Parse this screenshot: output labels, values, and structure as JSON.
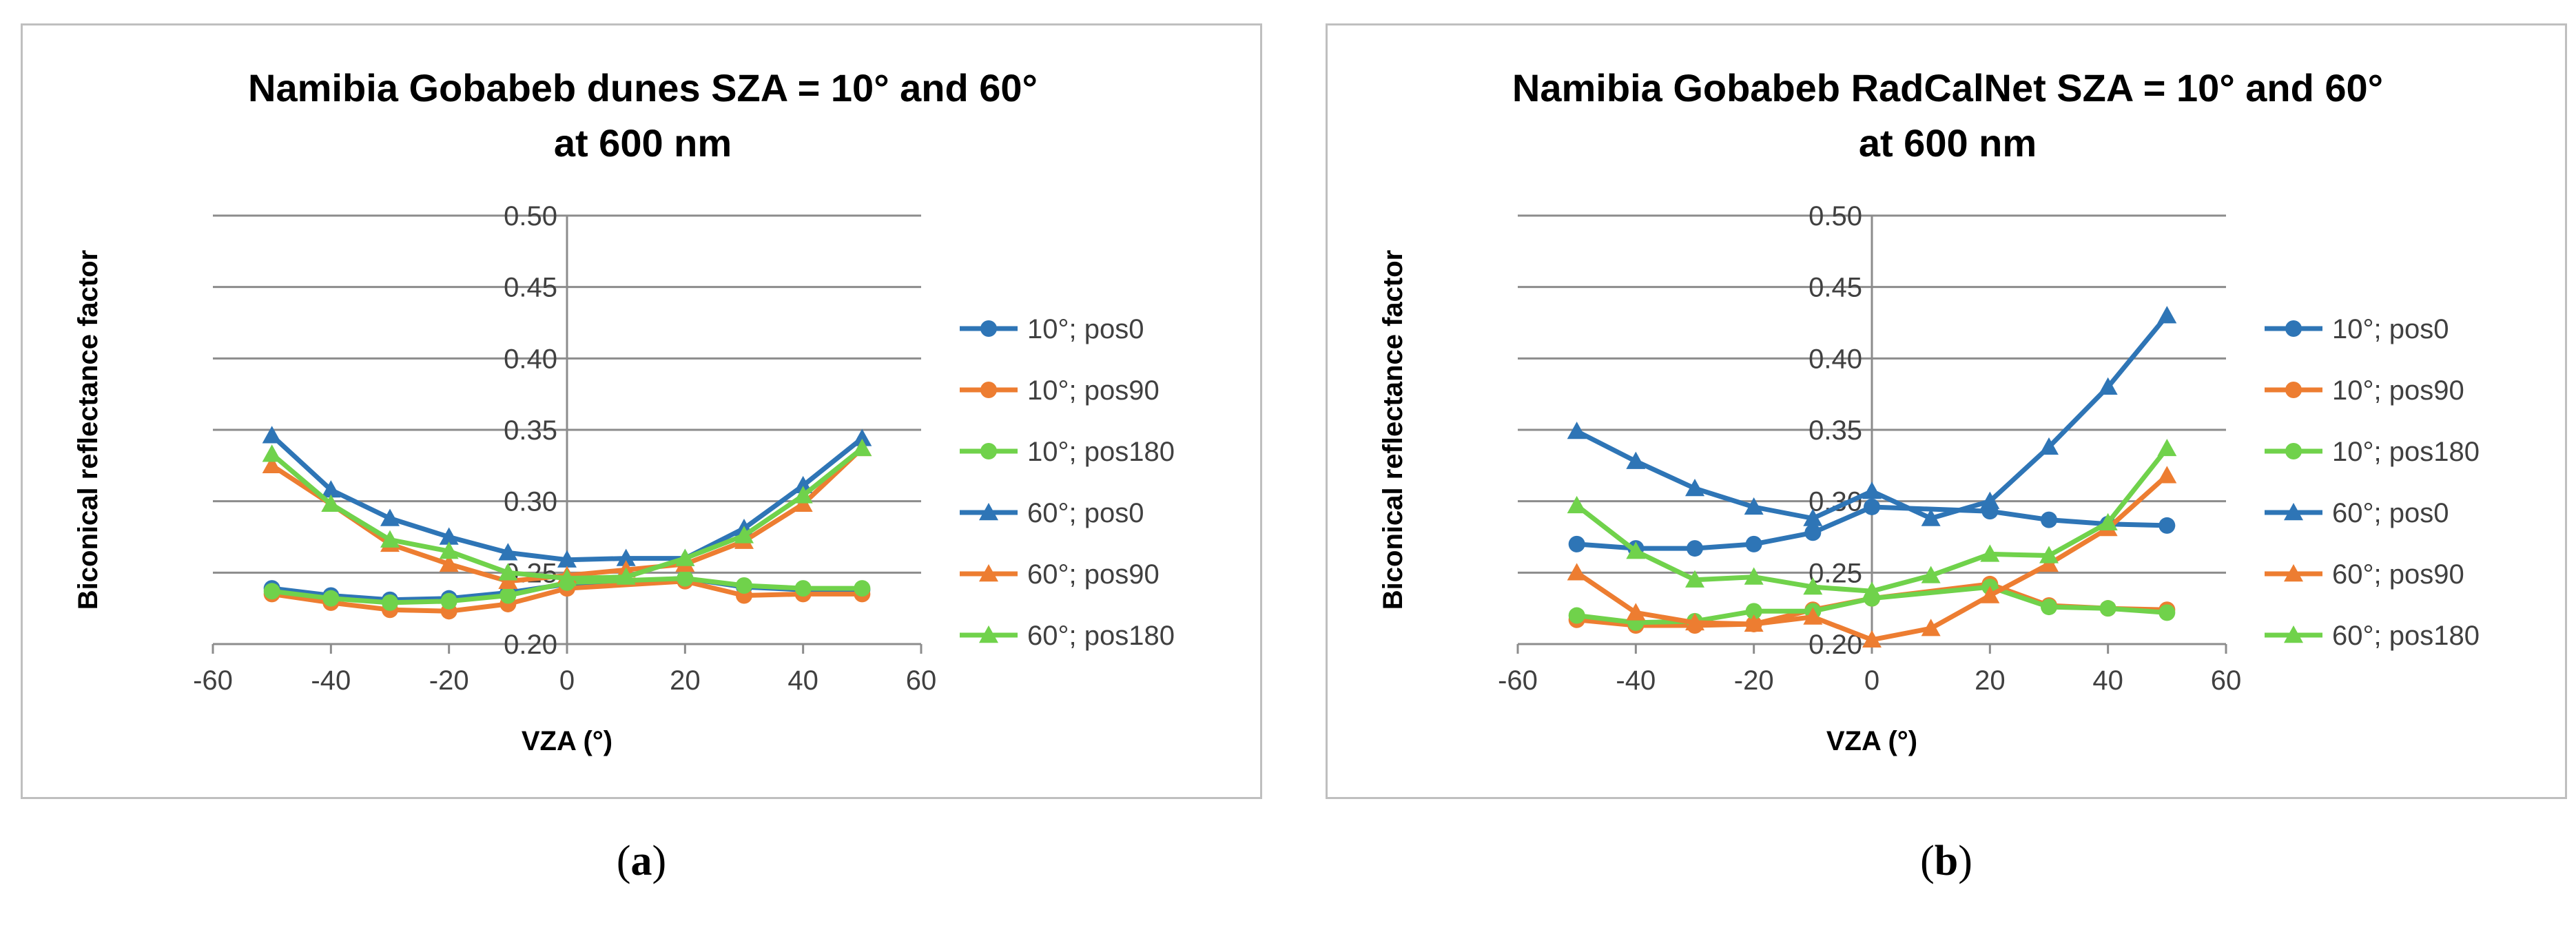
{
  "captions": [
    "a",
    "b"
  ],
  "legend_entries": [
    "10°; pos0",
    "10°; pos90",
    "10°; pos180",
    "60°; pos0",
    "60°; pos90",
    "60°; pos180"
  ],
  "colors": {
    "blue": "#2E75B6",
    "orange": "#ED7D31",
    "green": "#70D24B"
  },
  "chart_data": [
    {
      "type": "line",
      "title": [
        "Namibia Gobabeb dunes SZA = 10° and 60°",
        "at 600 nm"
      ],
      "xlabel": "VZA (°)",
      "ylabel": "Biconical reflectance factor",
      "xlim": [
        -60,
        60
      ],
      "ylim": [
        0.2,
        0.5
      ],
      "xticks": [
        -60,
        -40,
        -20,
        0,
        20,
        40,
        60
      ],
      "yticks": [
        "0.20",
        "0.25",
        "0.30",
        "0.35",
        "0.40",
        "0.45",
        "0.50"
      ],
      "grid": "horizontal",
      "legend": "right",
      "x": [
        -50,
        -40,
        -30,
        -20,
        -10,
        0,
        10,
        20,
        30,
        40,
        50
      ],
      "series": [
        {
          "name": "10°; pos0",
          "color": "blue",
          "marker": "circle",
          "values": [
            0.239,
            0.234,
            0.231,
            0.232,
            0.236,
            0.242,
            null,
            0.246,
            0.24,
            0.238,
            0.238
          ]
        },
        {
          "name": "10°; pos90",
          "color": "orange",
          "marker": "circle",
          "values": [
            0.235,
            0.229,
            0.224,
            0.223,
            0.228,
            0.239,
            null,
            0.244,
            0.234,
            0.235,
            0.235
          ]
        },
        {
          "name": "10°; pos180",
          "color": "green",
          "marker": "circle",
          "values": [
            0.237,
            0.232,
            0.229,
            0.23,
            0.234,
            0.243,
            null,
            0.246,
            0.241,
            0.239,
            0.239
          ]
        },
        {
          "name": "60°; pos0",
          "color": "blue",
          "marker": "triangle",
          "values": [
            0.346,
            0.308,
            0.288,
            0.275,
            0.264,
            0.259,
            0.26,
            0.26,
            0.281,
            0.311,
            0.344
          ]
        },
        {
          "name": "60°; pos90",
          "color": "orange",
          "marker": "triangle",
          "values": [
            0.325,
            0.298,
            0.27,
            0.256,
            0.244,
            0.248,
            0.252,
            0.256,
            0.272,
            0.298,
            0.337
          ]
        },
        {
          "name": "60°; pos180",
          "color": "green",
          "marker": "triangle",
          "values": [
            0.333,
            0.298,
            0.273,
            0.265,
            0.25,
            0.246,
            0.247,
            0.26,
            0.276,
            0.304,
            0.337
          ]
        }
      ]
    },
    {
      "type": "line",
      "title": [
        "Namibia Gobabeb RadCalNet SZA = 10° and 60°",
        "at 600 nm"
      ],
      "xlabel": "VZA (°)",
      "ylabel": "Biconical reflectance factor",
      "xlim": [
        -60,
        60
      ],
      "ylim": [
        0.2,
        0.5
      ],
      "xticks": [
        -60,
        -40,
        -20,
        0,
        20,
        40,
        60
      ],
      "yticks": [
        "0.20",
        "0.25",
        "0.30",
        "0.35",
        "0.40",
        "0.45",
        "0.50"
      ],
      "grid": "horizontal",
      "legend": "right",
      "x": [
        -50,
        -40,
        -30,
        -20,
        -10,
        0,
        10,
        20,
        30,
        40,
        50
      ],
      "series": [
        {
          "name": "10°; pos0",
          "color": "blue",
          "marker": "circle",
          "values": [
            0.27,
            0.267,
            0.267,
            0.27,
            0.278,
            0.296,
            null,
            0.293,
            0.287,
            0.284,
            0.283
          ]
        },
        {
          "name": "10°; pos90",
          "color": "orange",
          "marker": "circle",
          "values": [
            0.217,
            0.213,
            0.213,
            0.214,
            0.224,
            0.232,
            null,
            0.242,
            0.227,
            0.225,
            0.224
          ]
        },
        {
          "name": "10°; pos180",
          "color": "green",
          "marker": "circle",
          "values": [
            0.22,
            0.215,
            0.216,
            0.223,
            0.223,
            0.232,
            null,
            0.24,
            0.226,
            0.225,
            0.222
          ]
        },
        {
          "name": "60°; pos0",
          "color": "blue",
          "marker": "triangle",
          "values": [
            0.349,
            0.328,
            0.309,
            0.296,
            0.288,
            0.307,
            0.288,
            0.3,
            0.338,
            0.38,
            0.43
          ]
        },
        {
          "name": "60°; pos90",
          "color": "orange",
          "marker": "triangle",
          "values": [
            0.25,
            0.222,
            0.215,
            0.214,
            0.219,
            0.203,
            0.211,
            0.234,
            0.256,
            0.281,
            0.318
          ]
        },
        {
          "name": "60°; pos180",
          "color": "green",
          "marker": "triangle",
          "values": [
            0.297,
            0.265,
            0.245,
            0.247,
            0.24,
            0.237,
            0.248,
            0.263,
            0.262,
            0.285,
            0.337
          ]
        }
      ]
    }
  ]
}
